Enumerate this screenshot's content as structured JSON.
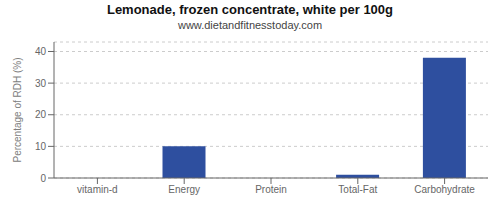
{
  "chart_data": {
    "type": "bar",
    "title": "Lemonade, frozen concentrate, white per 100g",
    "subtitle": "www.dietandfitnesstoday.com",
    "categories": [
      "vitamin-d",
      "Energy",
      "Protein",
      "Total-Fat",
      "Carbohydrate"
    ],
    "values": [
      0,
      10,
      0,
      1,
      38
    ],
    "color": "#2e4f9f",
    "ylabel": "Percentage of RDH (%)",
    "ylim": [
      0,
      43
    ],
    "yticks": [
      0,
      10,
      20,
      30,
      40
    ],
    "grid": true
  }
}
